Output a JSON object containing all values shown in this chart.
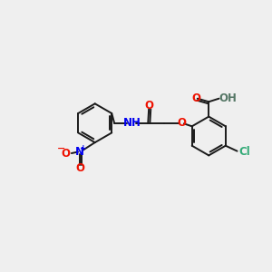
{
  "background_color": "#efefef",
  "bond_color": "#1a1a1a",
  "oxygen_color": "#ee1100",
  "nitrogen_color": "#0000ee",
  "chlorine_color": "#33aa77",
  "hydrogen_color": "#557766",
  "figsize": [
    3.0,
    3.0
  ],
  "dpi": 100,
  "xlim": [
    0,
    10
  ],
  "ylim": [
    0,
    10
  ]
}
